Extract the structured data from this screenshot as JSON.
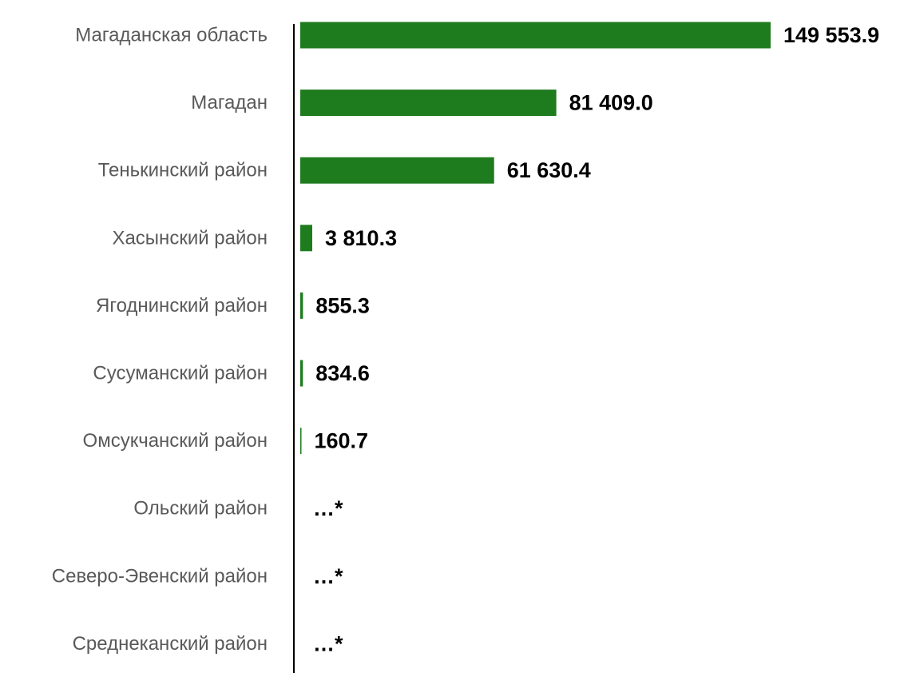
{
  "chart_data": {
    "type": "bar",
    "orientation": "horizontal",
    "title": "",
    "xlabel": "",
    "ylabel": "",
    "xlim": [
      0,
      150000
    ],
    "grid": false,
    "legend": "none",
    "categories": [
      "Магаданская область",
      "Магадан",
      "Тенькинский район",
      "Хасынский район",
      "Ягоднинский район",
      "Сусуманский район",
      "Омсукчанский район",
      "Ольский район",
      "Северо-Эвенский район",
      "Среднеканский район"
    ],
    "values": [
      149553.9,
      81409.0,
      61630.4,
      3810.3,
      855.3,
      834.6,
      160.7,
      null,
      null,
      null
    ],
    "value_labels": [
      "149 553.9",
      "81 409.0",
      "61 630.4",
      "3 810.3",
      "855.3",
      "834.6",
      "160.7",
      "…*",
      "…*",
      "…*"
    ],
    "colors": {
      "bar": "#1e7b1e",
      "axis": "#000000",
      "category_text": "#595959",
      "value_text": "#000000"
    }
  }
}
